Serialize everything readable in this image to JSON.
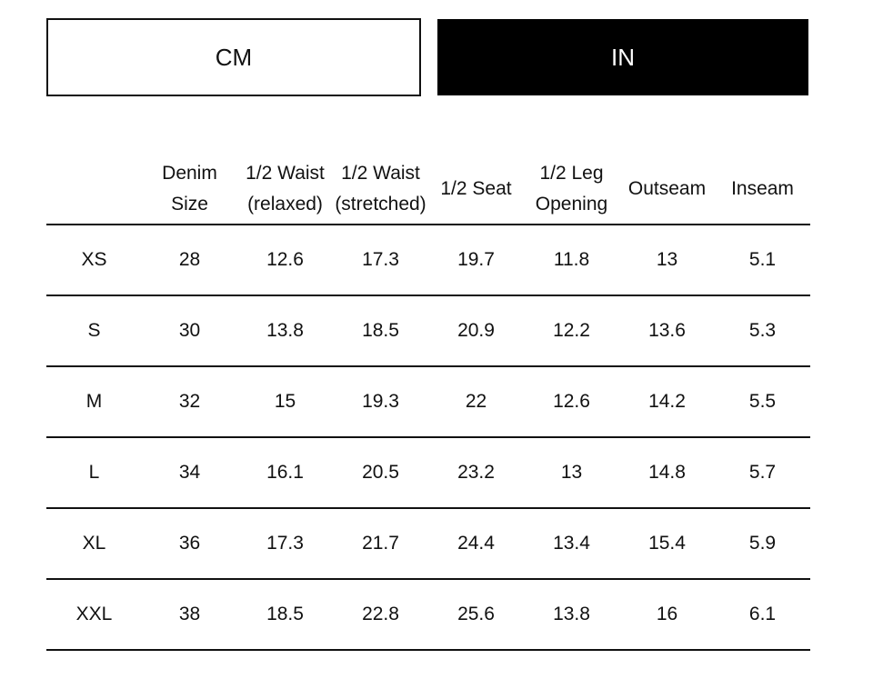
{
  "unit_toggle": {
    "cm_label": "CM",
    "in_label": "IN",
    "selected": "IN"
  },
  "table": {
    "headers": [
      "",
      "Denim\nSize",
      "1/2 Waist\n(relaxed)",
      "1/2 Waist\n(stretched)",
      "1/2 Seat",
      "1/2 Leg\nOpening",
      "Outseam",
      "Inseam"
    ],
    "rows": [
      [
        "XS",
        "28",
        "12.6",
        "17.3",
        "19.7",
        "11.8",
        "13",
        "5.1"
      ],
      [
        "S",
        "30",
        "13.8",
        "18.5",
        "20.9",
        "12.2",
        "13.6",
        "5.3"
      ],
      [
        "M",
        "32",
        "15",
        "19.3",
        "22",
        "12.6",
        "14.2",
        "5.5"
      ],
      [
        "L",
        "34",
        "16.1",
        "20.5",
        "23.2",
        "13",
        "14.8",
        "5.7"
      ],
      [
        "XL",
        "36",
        "17.3",
        "21.7",
        "24.4",
        "13.4",
        "15.4",
        "5.9"
      ],
      [
        "XXL",
        "38",
        "18.5",
        "22.8",
        "25.6",
        "13.8",
        "16",
        "6.1"
      ]
    ]
  }
}
